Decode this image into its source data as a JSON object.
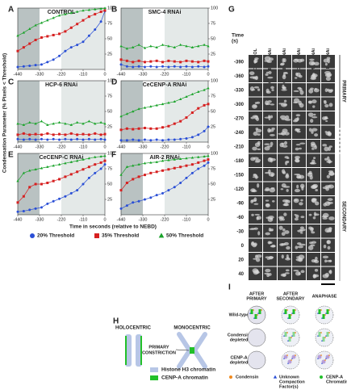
{
  "figure": {
    "y_label": "Condensation Parameter (% Pixels < Threshold)",
    "x_label": "Time in seconds (relative to NEBD)",
    "legend": [
      {
        "label": "20% Threshold",
        "color": "#2a4fd6",
        "marker": "circle"
      },
      {
        "label": "35% Threshold",
        "color": "#d62020",
        "marker": "square"
      },
      {
        "label": "50% Threshold",
        "color": "#1aa32a",
        "marker": "triangle"
      }
    ]
  },
  "chart_data": [
    {
      "type": "line",
      "panel": "A",
      "title": "CONTROL",
      "title_color": "#000000",
      "x": [
        -440,
        -410,
        -380,
        -350,
        -320,
        -290,
        -260,
        -230,
        -200,
        -170,
        -140,
        -110,
        -80,
        -50,
        -20,
        0
      ],
      "xlim": [
        -440,
        0
      ],
      "xticks": [
        -440,
        -330,
        -220,
        -110,
        0
      ],
      "ylim": [
        0,
        100
      ],
      "yticks": [
        25,
        50,
        75,
        100
      ],
      "series": [
        {
          "values": [
            4,
            5,
            6,
            7,
            8,
            12,
            16,
            22,
            30,
            36,
            40,
            45,
            55,
            65,
            78,
            95
          ]
        },
        {
          "values": [
            30,
            36,
            42,
            48,
            52,
            54,
            56,
            58,
            62,
            68,
            74,
            80,
            86,
            90,
            94,
            96
          ]
        },
        {
          "values": [
            55,
            60,
            66,
            72,
            76,
            80,
            84,
            88,
            90,
            92,
            94,
            96,
            97,
            98,
            99,
            100
          ]
        }
      ]
    },
    {
      "type": "line",
      "panel": "B",
      "title": "SMC-4 RNAi",
      "title_color": "#8a96a0",
      "x": [
        -440,
        -410,
        -380,
        -350,
        -320,
        -290,
        -260,
        -230,
        -200,
        -170,
        -140,
        -110,
        -80,
        -50,
        -20,
        0
      ],
      "xlim": [
        -440,
        0
      ],
      "xticks": [
        -440,
        -330,
        -220,
        -110,
        0
      ],
      "ylim": [
        0,
        100
      ],
      "yticks": [
        25,
        50,
        75,
        100
      ],
      "series": [
        {
          "values": [
            8,
            5,
            4,
            5,
            4,
            5,
            4,
            5,
            4,
            5,
            4,
            5,
            4,
            5,
            4,
            5
          ]
        },
        {
          "values": [
            16,
            14,
            12,
            14,
            12,
            13,
            14,
            12,
            14,
            13,
            12,
            14,
            13,
            12,
            14,
            13
          ]
        },
        {
          "values": [
            38,
            34,
            36,
            40,
            35,
            38,
            36,
            40,
            38,
            36,
            40,
            38,
            36,
            38,
            40,
            38
          ]
        }
      ]
    },
    {
      "type": "line",
      "panel": "C",
      "title": "HCP-6 RNAi",
      "title_color": "#d6206a",
      "x": [
        -440,
        -410,
        -380,
        -350,
        -320,
        -290,
        -260,
        -230,
        -200,
        -170,
        -140,
        -110,
        -80,
        -50,
        -20,
        0
      ],
      "xlim": [
        -440,
        0
      ],
      "xticks": [
        -440,
        -330,
        -220,
        -110,
        0
      ],
      "ylim": [
        0,
        100
      ],
      "yticks": [
        25,
        50,
        75,
        100
      ],
      "series": [
        {
          "values": [
            5,
            4,
            5,
            4,
            5,
            4,
            5,
            4,
            5,
            4,
            5,
            4,
            5,
            4,
            5,
            4
          ]
        },
        {
          "values": [
            12,
            14,
            12,
            13,
            12,
            14,
            12,
            13,
            12,
            14,
            12,
            13,
            12,
            14,
            12,
            13
          ]
        },
        {
          "values": [
            30,
            28,
            32,
            30,
            34,
            28,
            30,
            32,
            30,
            28,
            32,
            30,
            34,
            30,
            32,
            30
          ]
        }
      ]
    },
    {
      "type": "line",
      "panel": "D",
      "title": "CeCENP-A RNAi",
      "title_color": "#2a4fd6",
      "x": [
        -440,
        -410,
        -380,
        -350,
        -320,
        -290,
        -260,
        -230,
        -200,
        -170,
        -140,
        -110,
        -80,
        -50,
        -20,
        0
      ],
      "xlim": [
        -440,
        0
      ],
      "xticks": [
        -440,
        -330,
        -220,
        -110,
        0
      ],
      "ylim": [
        0,
        100
      ],
      "yticks": [
        25,
        50,
        75,
        100
      ],
      "series": [
        {
          "values": [
            3,
            3,
            4,
            3,
            4,
            3,
            4,
            3,
            4,
            4,
            5,
            6,
            8,
            12,
            18,
            25
          ]
        },
        {
          "values": [
            20,
            22,
            21,
            22,
            23,
            22,
            22,
            24,
            26,
            30,
            34,
            40,
            48,
            55,
            60,
            62
          ]
        },
        {
          "values": [
            42,
            46,
            50,
            54,
            56,
            58,
            60,
            62,
            64,
            66,
            70,
            74,
            78,
            82,
            85,
            88
          ]
        }
      ]
    },
    {
      "type": "line",
      "panel": "E",
      "title": "CeCENP-C RNAi",
      "title_color": "#e8961a",
      "x": [
        -440,
        -410,
        -380,
        -350,
        -320,
        -290,
        -260,
        -230,
        -200,
        -170,
        -140,
        -110,
        -80,
        -50,
        -20,
        0
      ],
      "xlim": [
        -440,
        0
      ],
      "xticks": [
        -440,
        -330,
        -220,
        -110,
        0
      ],
      "ylim": [
        0,
        100
      ],
      "yticks": [
        25,
        50,
        75,
        100
      ],
      "series": [
        {
          "values": [
            5,
            6,
            8,
            10,
            12,
            18,
            22,
            26,
            30,
            35,
            40,
            50,
            60,
            68,
            75,
            82
          ]
        },
        {
          "values": [
            20,
            30,
            45,
            50,
            50,
            52,
            55,
            58,
            62,
            66,
            70,
            74,
            78,
            82,
            85,
            88
          ]
        },
        {
          "values": [
            55,
            68,
            72,
            74,
            76,
            78,
            80,
            82,
            84,
            86,
            88,
            90,
            92,
            94,
            95,
            96
          ]
        }
      ]
    },
    {
      "type": "line",
      "panel": "F",
      "title": "AIR-2 RNAi",
      "title_color": "#1aa32a",
      "x": [
        -440,
        -410,
        -380,
        -350,
        -320,
        -290,
        -260,
        -230,
        -200,
        -170,
        -140,
        -110,
        -80,
        -50,
        -20,
        0
      ],
      "xlim": [
        -440,
        0
      ],
      "xticks": [
        -440,
        -330,
        -220,
        -110,
        0
      ],
      "ylim": [
        0,
        100
      ],
      "yticks": [
        25,
        50,
        75,
        100
      ],
      "series": [
        {
          "values": [
            10,
            15,
            20,
            22,
            25,
            28,
            32,
            35,
            40,
            45,
            52,
            60,
            68,
            75,
            80,
            85
          ]
        },
        {
          "values": [
            40,
            52,
            58,
            62,
            65,
            68,
            70,
            72,
            74,
            76,
            78,
            80,
            82,
            85,
            88,
            90
          ]
        },
        {
          "values": [
            65,
            78,
            80,
            82,
            84,
            85,
            86,
            88,
            89,
            90,
            91,
            92,
            93,
            94,
            95,
            96
          ]
        }
      ]
    }
  ],
  "panel_g": {
    "letter": "G",
    "time_label": [
      "Time",
      "(s)"
    ],
    "columns": [
      {
        "label": "CONTROL",
        "color": "#000000"
      },
      {
        "label": "CeCENP-C RNAi",
        "color": "#e8961a"
      },
      {
        "label": "CeCENP-A RNAi",
        "color": "#2a4fd6"
      },
      {
        "label": "HCP-6 RNAi",
        "color": "#d6206a"
      },
      {
        "label": "SMC-4 RNAi",
        "color": "#8a96a0"
      },
      {
        "label": "AIR-2 RNAi",
        "color": "#1aa32a"
      }
    ],
    "times": [
      -390,
      -360,
      -330,
      -300,
      -270,
      -240,
      -210,
      -180,
      -150,
      -120,
      -90,
      -60,
      -30,
      0,
      20,
      40
    ],
    "phases": [
      "PRIMARY",
      "SECONDARY"
    ]
  },
  "panel_h": {
    "letter": "H",
    "holocentric": "HOLOCENTRIC",
    "monocentric": "MONOCENTRIC",
    "constriction": [
      "PRIMARY",
      "CONSTRICTION"
    ],
    "legend": [
      "Histone H3 chromatin",
      "CENP-A chromatin"
    ]
  },
  "panel_i": {
    "letter": "I",
    "columns": [
      [
        "AFTER",
        "PRIMARY"
      ],
      [
        "AFTER",
        "SECONDARY"
      ],
      [
        "ANAPHASE"
      ]
    ],
    "rows": [
      [
        "Wild-type"
      ],
      [
        "Condensin",
        "depleted"
      ],
      [
        "CENP-A",
        "depleted"
      ]
    ],
    "legend": [
      [
        "Condensin"
      ],
      [
        "Unknown",
        "Compaction",
        "Factor(s)"
      ],
      [
        "CENP-A",
        "Chromatin"
      ]
    ]
  }
}
